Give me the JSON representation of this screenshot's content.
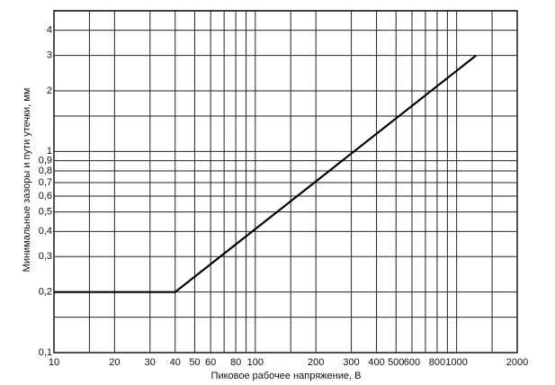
{
  "chart_data": {
    "type": "line",
    "x_label": "Пиковое рабочее напряжение, В",
    "y_label": "Минимальные зазоры и пути утечки, мм",
    "x_scale": "log",
    "y_scale": "log",
    "grid": true,
    "xlim": [
      10,
      2000
    ],
    "ylim": [
      0.1,
      5
    ],
    "xticks": [
      10,
      20,
      30,
      40,
      50,
      60,
      80,
      100,
      200,
      300,
      400,
      500,
      600,
      800,
      1000,
      2000
    ],
    "xgrid": [
      15,
      70,
      90,
      150,
      700,
      900,
      1500
    ],
    "yticks": [
      {
        "value": 0.1,
        "label": "0,1"
      },
      {
        "value": 0.2,
        "label": "0,2"
      },
      {
        "value": 0.3,
        "label": "0,3"
      },
      {
        "value": 0.4,
        "label": "0,4"
      },
      {
        "value": 0.5,
        "label": "0,5"
      },
      {
        "value": 0.6,
        "label": "0,6"
      },
      {
        "value": 0.7,
        "label": "0,7"
      },
      {
        "value": 0.8,
        "label": "0,8"
      },
      {
        "value": 0.9,
        "label": "0,9"
      },
      1,
      2,
      3,
      4
    ],
    "ygrid": [
      0.15,
      1.5
    ],
    "series": [
      {
        "color": "#000000",
        "x": [
          10,
          40,
          1250
        ],
        "values": [
          0.2,
          0.2,
          3
        ]
      }
    ]
  }
}
